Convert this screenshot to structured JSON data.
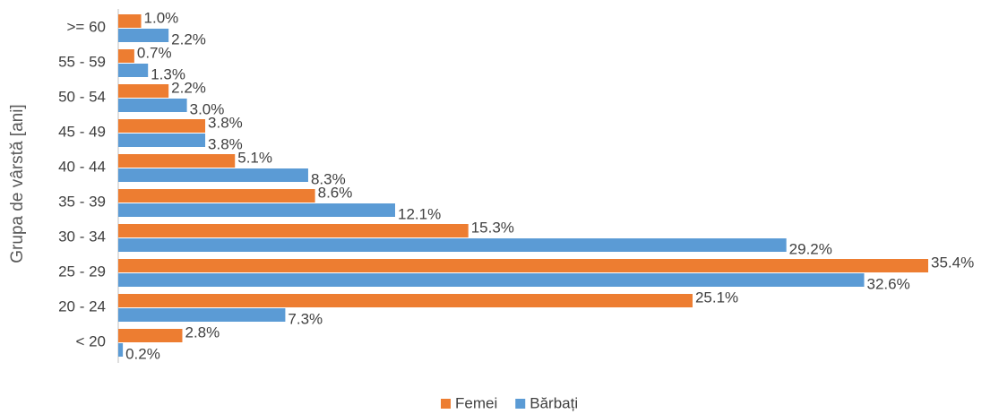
{
  "chart_data": {
    "type": "hbar",
    "y_label": "Grupa de vârstă [ani]",
    "categories": [
      ">= 60",
      "55 - 59",
      "50 - 54",
      "45 - 49",
      "40 - 44",
      "35 - 39",
      "30 - 34",
      "25 - 29",
      "20 - 24",
      "< 20"
    ],
    "series": [
      {
        "name": "Femei",
        "color": "#ed7d31",
        "values": [
          1.0,
          0.7,
          2.2,
          3.8,
          5.1,
          8.6,
          15.3,
          35.4,
          25.1,
          2.8
        ],
        "value_labels": [
          "1.0%",
          "0.7%",
          "2.2%",
          "3.8%",
          "5.1%",
          "8.6%",
          "15.3%",
          "35.4%",
          "25.1%",
          "2.8%"
        ]
      },
      {
        "name": "Bărbați",
        "color": "#5b9bd5",
        "values": [
          2.2,
          1.3,
          3.0,
          3.8,
          8.3,
          12.1,
          29.2,
          32.6,
          7.3,
          0.2
        ],
        "value_labels": [
          "2.2%",
          "1.3%",
          "3.0%",
          "3.8%",
          "8.3%",
          "12.1%",
          "29.2%",
          "32.6%",
          "7.3%",
          "0.2%"
        ]
      }
    ],
    "legend": "bottom"
  }
}
